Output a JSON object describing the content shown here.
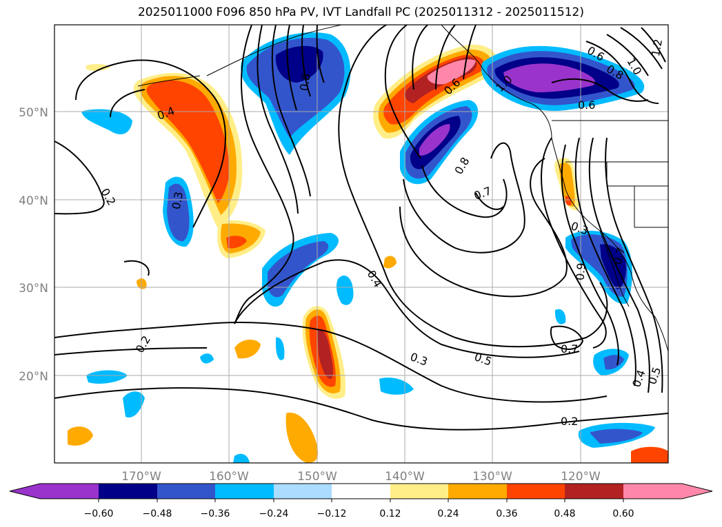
{
  "title": "2025011000 F096 850 hPa PV, IVT Landfall PC (2025011312 - 2025011512)",
  "axes": {
    "lat_ticks": [
      "50°N",
      "40°N",
      "30°N",
      "20°N"
    ],
    "lon_ticks": [
      "170°W",
      "160°W",
      "150°W",
      "140°W",
      "130°W",
      "120°W"
    ]
  },
  "colorbar": {
    "ticks": [
      "−0.60",
      "−0.48",
      "−0.36",
      "−0.24",
      "−0.12",
      "0.12",
      "0.24",
      "0.36",
      "0.48",
      "0.60"
    ],
    "colors": [
      "#9933cc",
      "#000088",
      "#3355cc",
      "#00bbff",
      "#aaddff",
      "#ffffff",
      "#ffee88",
      "#ffaa00",
      "#ff4400",
      "#b22222",
      "#ff88aa"
    ]
  },
  "contour_labels": [
    "0.4",
    "0.2",
    "0.3",
    "0.8",
    "0.6",
    "1.0",
    "0.7",
    "0.8",
    "0.9",
    "0.4",
    "0.3",
    "0.5",
    "0.7",
    "0.6",
    "0.3",
    "0.2",
    "0.4",
    "0.5",
    "0.2",
    "0.8",
    "1.0",
    "1.2",
    "0.6",
    "0.7"
  ],
  "colors": {
    "grid": "#aaaaaa",
    "tick_label": "#808080",
    "contour": "#000000"
  }
}
